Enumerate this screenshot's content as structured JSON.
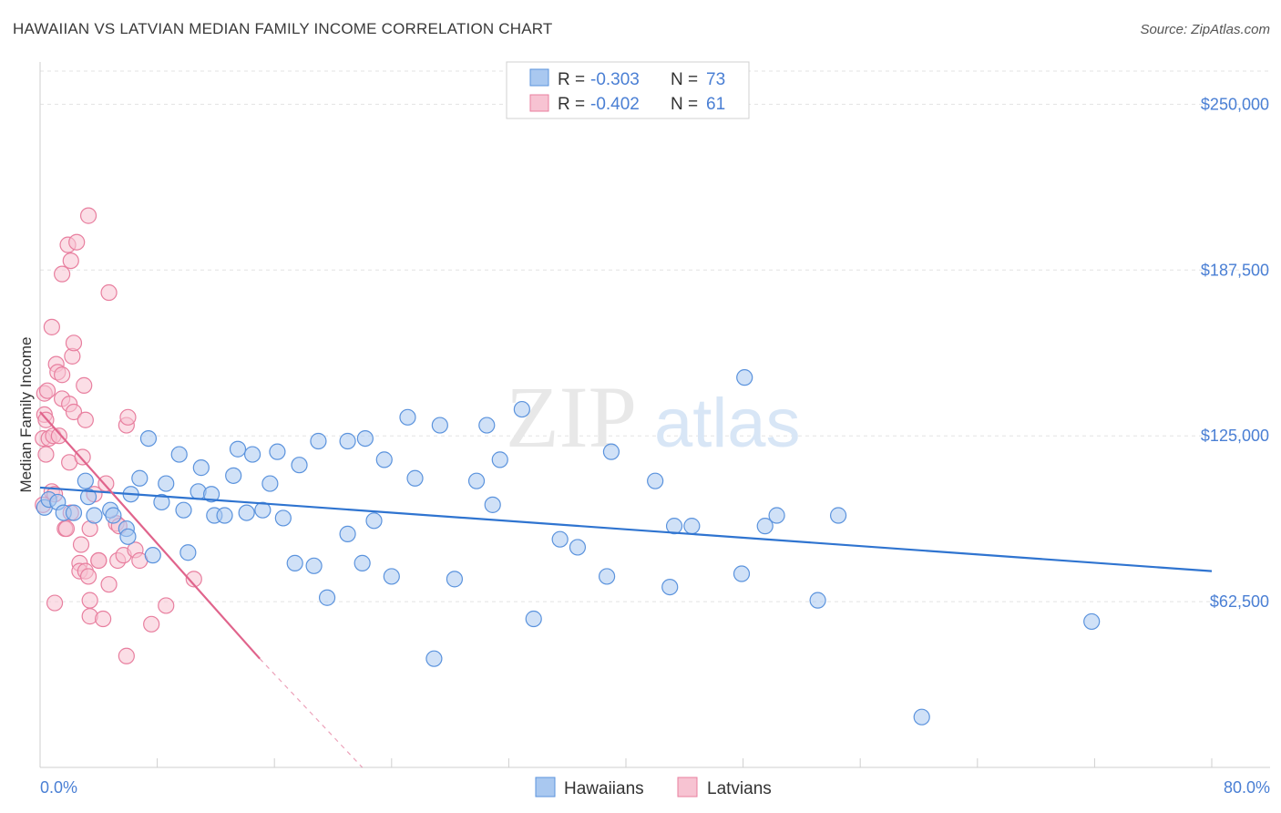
{
  "title": "HAWAIIAN VS LATVIAN MEDIAN FAMILY INCOME CORRELATION CHART",
  "source": "Source: ZipAtlas.com",
  "watermark": {
    "zip": "ZIP",
    "atlas": "atlas"
  },
  "legend": {
    "rows": [
      {
        "r_label": "R =",
        "r_value": "-0.303",
        "n_label": "N =",
        "n_value": "73",
        "color": "#7eaee8"
      },
      {
        "r_label": "R =",
        "r_value": "-0.402",
        "n_label": "N =",
        "n_value": "61",
        "color": "#f0a0b8"
      }
    ]
  },
  "colors": {
    "hawaiian_fill": "#a9c8f0",
    "hawaiian_stroke": "#5b93dd",
    "hawaiian_line": "#2f74d0",
    "latvian_fill": "#f7c3d2",
    "latvian_stroke": "#e87f9f",
    "latvian_line": "#e0648c",
    "grid": "#e3e3e3",
    "axis_text": "#4a7fd4"
  },
  "chart_data": {
    "type": "scatter",
    "title": "HAWAIIAN VS LATVIAN MEDIAN FAMILY INCOME CORRELATION CHART",
    "xlabel": "",
    "ylabel": "Median Family Income",
    "xlim": [
      0,
      80
    ],
    "ylim": [
      0,
      262500
    ],
    "x_tick_labels": [
      "0.0%",
      "80.0%"
    ],
    "y_ticks": [
      62500,
      125000,
      187500,
      250000
    ],
    "y_tick_labels": [
      "$62,500",
      "$125,000",
      "$187,500",
      "$250,000"
    ],
    "grid": true,
    "series": [
      {
        "name": "Hawaiians",
        "r": -0.303,
        "n": 73,
        "trend": {
          "x0": 0,
          "y0": 105500,
          "x1": 80,
          "y1": 74000,
          "x_end_solid": 80
        },
        "points": [
          [
            0.3,
            98000
          ],
          [
            0.6,
            101000
          ],
          [
            1.2,
            100000
          ],
          [
            1.6,
            96000
          ],
          [
            2.3,
            96000
          ],
          [
            3.1,
            108000
          ],
          [
            3.3,
            102000
          ],
          [
            3.7,
            95000
          ],
          [
            4.8,
            97000
          ],
          [
            5.0,
            95000
          ],
          [
            5.9,
            90000
          ],
          [
            6.0,
            87000
          ],
          [
            6.2,
            103000
          ],
          [
            6.8,
            109000
          ],
          [
            7.4,
            124000
          ],
          [
            7.7,
            80000
          ],
          [
            8.3,
            100000
          ],
          [
            8.6,
            107000
          ],
          [
            9.5,
            118000
          ],
          [
            9.8,
            97000
          ],
          [
            10.1,
            81000
          ],
          [
            10.8,
            104000
          ],
          [
            11.0,
            113000
          ],
          [
            11.7,
            103000
          ],
          [
            11.9,
            95000
          ],
          [
            12.6,
            95000
          ],
          [
            13.2,
            110000
          ],
          [
            13.5,
            120000
          ],
          [
            14.1,
            96000
          ],
          [
            14.5,
            118000
          ],
          [
            15.2,
            97000
          ],
          [
            15.7,
            107000
          ],
          [
            16.2,
            119000
          ],
          [
            16.6,
            94000
          ],
          [
            17.4,
            77000
          ],
          [
            17.7,
            114000
          ],
          [
            18.7,
            76000
          ],
          [
            19.0,
            123000
          ],
          [
            19.6,
            64000
          ],
          [
            21.0,
            123000
          ],
          [
            21.0,
            88000
          ],
          [
            22.0,
            77000
          ],
          [
            22.2,
            124000
          ],
          [
            22.8,
            93000
          ],
          [
            23.5,
            116000
          ],
          [
            24.0,
            72000
          ],
          [
            25.1,
            132000
          ],
          [
            25.6,
            109000
          ],
          [
            26.9,
            41000
          ],
          [
            27.3,
            129000
          ],
          [
            28.3,
            71000
          ],
          [
            29.8,
            108000
          ],
          [
            30.5,
            129000
          ],
          [
            30.9,
            99000
          ],
          [
            31.4,
            116000
          ],
          [
            32.9,
            135000
          ],
          [
            33.7,
            56000
          ],
          [
            35.5,
            86000
          ],
          [
            36.7,
            83000
          ],
          [
            38.7,
            72000
          ],
          [
            39.0,
            119000
          ],
          [
            42.0,
            108000
          ],
          [
            43.0,
            68000
          ],
          [
            43.3,
            91000
          ],
          [
            44.5,
            91000
          ],
          [
            47.9,
            73000
          ],
          [
            48.1,
            147000
          ],
          [
            49.5,
            91000
          ],
          [
            50.3,
            95000
          ],
          [
            53.1,
            63000
          ],
          [
            54.5,
            95000
          ],
          [
            60.2,
            19000
          ],
          [
            71.8,
            55000
          ]
        ]
      },
      {
        "name": "Latvians",
        "r": -0.402,
        "n": 61,
        "trend": {
          "x0": 0,
          "y0": 134000,
          "x1": 15,
          "y1": 41000,
          "x_end_dashed": 22
        },
        "points": [
          [
            0.2,
            124000
          ],
          [
            0.3,
            133000
          ],
          [
            0.3,
            141000
          ],
          [
            0.4,
            131000
          ],
          [
            0.5,
            142000
          ],
          [
            0.6,
            124000
          ],
          [
            0.8,
            104000
          ],
          [
            0.8,
            166000
          ],
          [
            0.9,
            125000
          ],
          [
            1.0,
            103000
          ],
          [
            1.1,
            152000
          ],
          [
            1.2,
            149000
          ],
          [
            1.3,
            125000
          ],
          [
            1.5,
            139000
          ],
          [
            1.5,
            148000
          ],
          [
            1.5,
            186000
          ],
          [
            1.7,
            90000
          ],
          [
            1.8,
            90000
          ],
          [
            1.9,
            197000
          ],
          [
            2.0,
            137000
          ],
          [
            2.0,
            115000
          ],
          [
            2.1,
            96000
          ],
          [
            2.1,
            191000
          ],
          [
            2.2,
            155000
          ],
          [
            2.3,
            160000
          ],
          [
            2.3,
            134000
          ],
          [
            2.5,
            198000
          ],
          [
            2.7,
            77000
          ],
          [
            2.7,
            74000
          ],
          [
            2.8,
            84000
          ],
          [
            2.9,
            117000
          ],
          [
            3.0,
            144000
          ],
          [
            3.1,
            131000
          ],
          [
            3.1,
            74000
          ],
          [
            3.3,
            72000
          ],
          [
            3.3,
            208000
          ],
          [
            3.4,
            90000
          ],
          [
            3.4,
            63000
          ],
          [
            3.4,
            57000
          ],
          [
            3.7,
            103000
          ],
          [
            4.0,
            78000
          ],
          [
            4.0,
            78000
          ],
          [
            4.3,
            56000
          ],
          [
            4.5,
            107000
          ],
          [
            4.7,
            179000
          ],
          [
            4.7,
            69000
          ],
          [
            5.2,
            92000
          ],
          [
            5.3,
            78000
          ],
          [
            5.4,
            91000
          ],
          [
            5.7,
            80000
          ],
          [
            5.9,
            129000
          ],
          [
            5.9,
            42000
          ],
          [
            6.0,
            132000
          ],
          [
            6.5,
            82000
          ],
          [
            6.8,
            78000
          ],
          [
            7.6,
            54000
          ],
          [
            8.6,
            61000
          ],
          [
            10.5,
            71000
          ],
          [
            0.4,
            118000
          ],
          [
            0.2,
            99000
          ],
          [
            1.0,
            62000
          ]
        ]
      }
    ]
  },
  "bottom_legend": {
    "items": [
      {
        "label": "Hawaiians"
      },
      {
        "label": "Latvians"
      }
    ]
  }
}
